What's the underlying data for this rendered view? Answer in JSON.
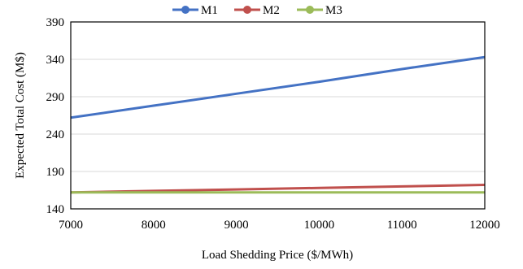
{
  "chart_data": {
    "type": "line",
    "x": [
      7000,
      8000,
      9000,
      10000,
      11000,
      12000
    ],
    "series": [
      {
        "name": "M1",
        "color": "#4472c4",
        "values": [
          262,
          278,
          294,
          310,
          327,
          343
        ]
      },
      {
        "name": "M2",
        "color": "#c0504d",
        "values": [
          162,
          164,
          166,
          168,
          170,
          172
        ]
      },
      {
        "name": "M3",
        "color": "#9bbb59",
        "values": [
          162,
          162,
          162,
          162,
          162,
          162
        ]
      }
    ],
    "xlabel": "Load Shedding Price ($/MWh)",
    "ylabel": "Expected Total Cost (M$)",
    "xticks": [
      7000,
      8000,
      9000,
      10000,
      11000,
      12000
    ],
    "yticks": [
      140,
      190,
      240,
      290,
      340,
      390
    ],
    "xlim": [
      7000,
      12000
    ],
    "ylim": [
      140,
      390
    ],
    "grid": "horizontal",
    "legend": "top-center"
  }
}
